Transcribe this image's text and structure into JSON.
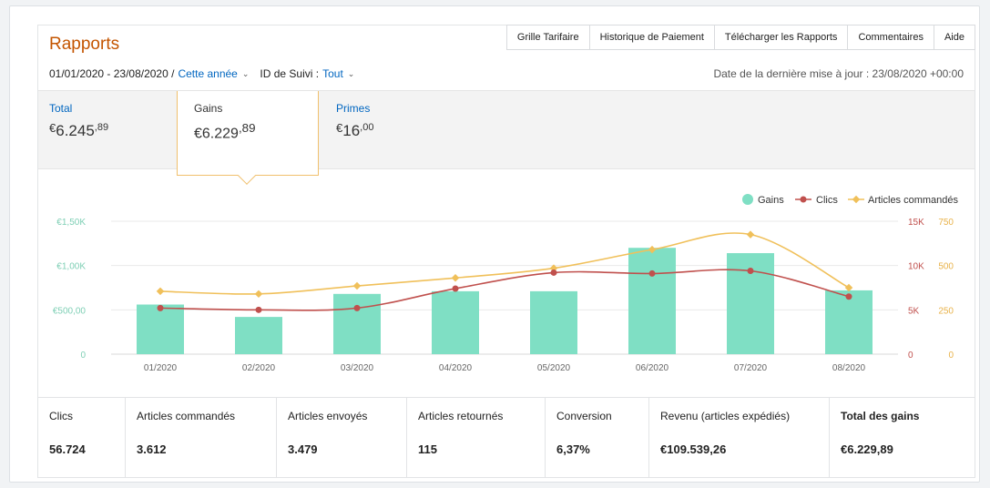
{
  "header": {
    "title": "Rapports",
    "tabs": [
      "Grille Tarifaire",
      "Historique de Paiement",
      "Télécharger les Rapports",
      "Commentaires",
      "Aide"
    ]
  },
  "filters": {
    "date_range": "01/01/2020 - 23/08/2020 /",
    "period": "Cette année",
    "tracking_label": "ID de Suivi :",
    "tracking_value": "Tout",
    "last_update": "Date de la dernière mise à jour : 23/08/2020 +00:00"
  },
  "summary": {
    "total": {
      "label": "Total",
      "currency": "€",
      "whole": "6.245",
      "cents": ",89"
    },
    "gains": {
      "label": "Gains",
      "currency": "€",
      "whole": "6.229",
      "cents": ",89"
    },
    "primes": {
      "label": "Primes",
      "currency": "€",
      "whole": "16",
      "cents": ",00"
    }
  },
  "chart_data": {
    "type": "bar",
    "categories": [
      "01/2020",
      "02/2020",
      "03/2020",
      "04/2020",
      "05/2020",
      "06/2020",
      "07/2020",
      "08/2020"
    ],
    "series": [
      {
        "name": "Gains",
        "type": "bar",
        "axis": "left",
        "color": "#7fdfc4",
        "values": [
          560,
          420,
          680,
          710,
          710,
          1200,
          1140,
          720
        ]
      },
      {
        "name": "Clics",
        "type": "line",
        "axis": "right1",
        "color": "#c0504d",
        "values": [
          5200,
          5000,
          5200,
          7400,
          9200,
          9100,
          9400,
          6500
        ]
      },
      {
        "name": "Articles commandés",
        "type": "line",
        "axis": "right2",
        "color": "#f0c05a",
        "values": [
          355,
          340,
          385,
          430,
          485,
          590,
          675,
          375
        ]
      }
    ],
    "left_axis": {
      "ticks": [
        "0",
        "€500,00",
        "€1,00K",
        "€1,50K"
      ],
      "range": [
        0,
        1500
      ]
    },
    "right1_axis": {
      "ticks": [
        "0",
        "5K",
        "10K",
        "15K"
      ],
      "range": [
        0,
        15000
      ]
    },
    "right2_axis": {
      "ticks": [
        "0",
        "250",
        "500",
        "750"
      ],
      "range": [
        0,
        750
      ]
    },
    "legend_position": "top-right",
    "grid": true
  },
  "stats": [
    {
      "label": "Clics",
      "value": "56.724"
    },
    {
      "label": "Articles commandés",
      "value": "3.612"
    },
    {
      "label": "Articles envoyés",
      "value": "3.479"
    },
    {
      "label": "Articles retournés",
      "value": "115"
    },
    {
      "label": "Conversion",
      "value": "6,37%"
    },
    {
      "label": "Revenu (articles expédiés)",
      "value": "€109.539,26"
    },
    {
      "label": "Total des gains",
      "value": "€6.229,89"
    }
  ]
}
